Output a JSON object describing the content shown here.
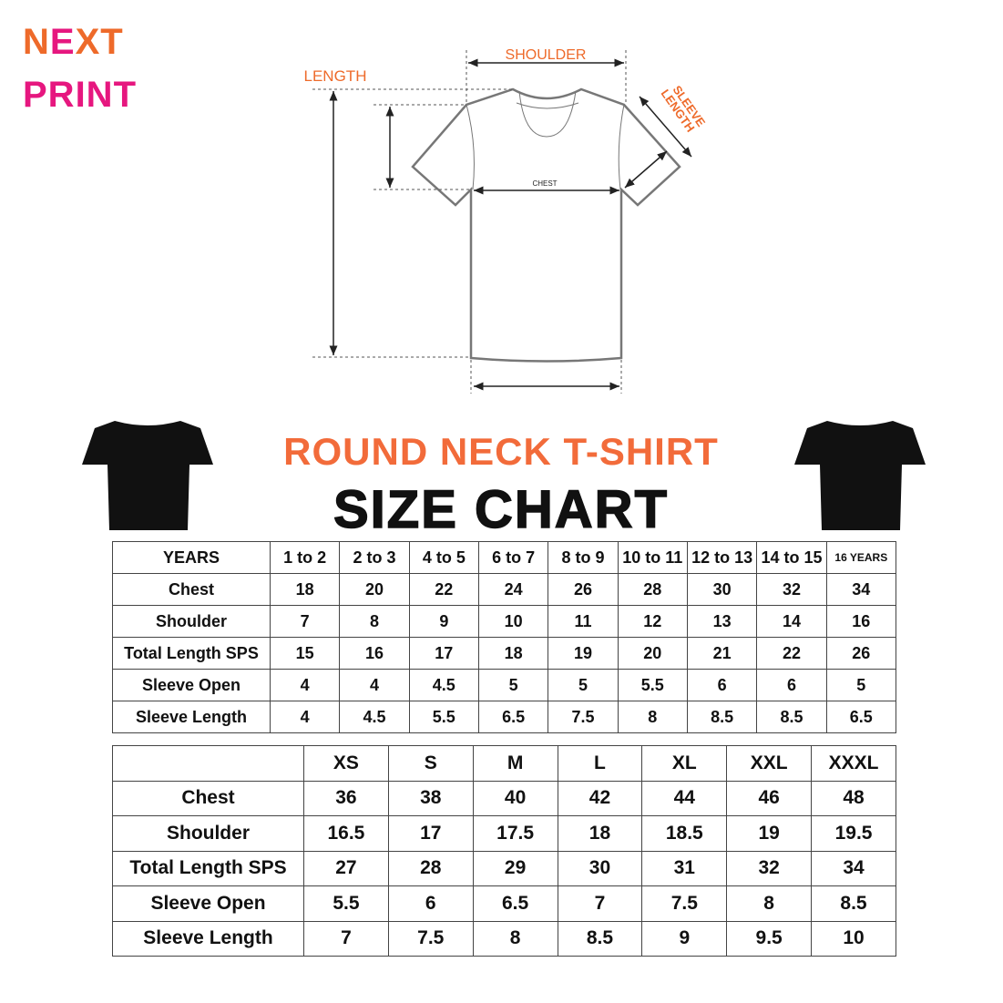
{
  "logo": {
    "line1_parts": [
      "N",
      "E",
      "XT"
    ],
    "line2": "PRINT",
    "orange": "#ee6a2a",
    "magenta": "#e6177f"
  },
  "diagram": {
    "shoulder": "SHOULDER",
    "length": "LENGTH",
    "sleeve_length_1": "SLEEVE",
    "sleeve_length_2": "LENGTH",
    "chest": "CHEST",
    "label_color": "#ee6a2a"
  },
  "title": {
    "line1": "ROUND NECK T-SHIRT",
    "line2": "SIZE CHART"
  },
  "kids_table": {
    "header": [
      "YEARS",
      "1 to 2",
      "2 to 3",
      "4 to 5",
      "6 to 7",
      "8 to 9",
      "10 to 11",
      "12 to 13",
      "14 to 15",
      "16 YEARS"
    ],
    "rows": [
      [
        "Chest",
        "18",
        "20",
        "22",
        "24",
        "26",
        "28",
        "30",
        "32",
        "34"
      ],
      [
        "Shoulder",
        "7",
        "8",
        "9",
        "10",
        "11",
        "12",
        "13",
        "14",
        "16"
      ],
      [
        "Total Length SPS",
        "15",
        "16",
        "17",
        "18",
        "19",
        "20",
        "21",
        "22",
        "26"
      ],
      [
        "Sleeve Open",
        "4",
        "4",
        "4.5",
        "5",
        "5",
        "5.5",
        "6",
        "6",
        "5"
      ],
      [
        "Sleeve Length",
        "4",
        "4.5",
        "5.5",
        "6.5",
        "7.5",
        "8",
        "8.5",
        "8.5",
        "6.5"
      ]
    ]
  },
  "adult_table": {
    "header": [
      "",
      "XS",
      "S",
      "M",
      "L",
      "XL",
      "XXL",
      "XXXL"
    ],
    "rows": [
      [
        "Chest",
        "36",
        "38",
        "40",
        "42",
        "44",
        "46",
        "48"
      ],
      [
        "Shoulder",
        "16.5",
        "17",
        "17.5",
        "18",
        "18.5",
        "19",
        "19.5"
      ],
      [
        "Total Length SPS",
        "27",
        "28",
        "29",
        "30",
        "31",
        "32",
        "34"
      ],
      [
        "Sleeve Open",
        "5.5",
        "6",
        "6.5",
        "7",
        "7.5",
        "8",
        "8.5"
      ],
      [
        "Sleeve Length",
        "7",
        "7.5",
        "8",
        "8.5",
        "9",
        "9.5",
        "10"
      ]
    ]
  }
}
